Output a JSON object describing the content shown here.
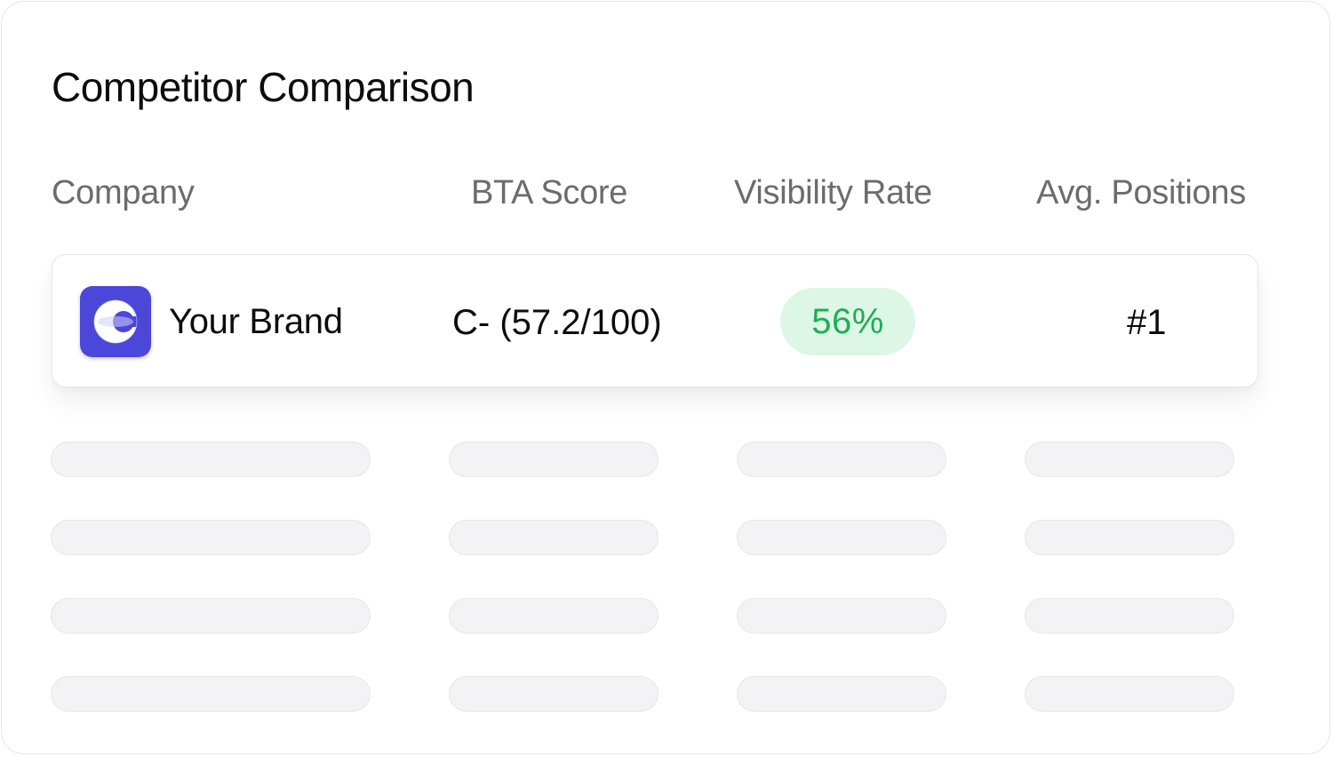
{
  "card": {
    "title": "Competitor Comparison"
  },
  "table": {
    "headers": {
      "company": "Company",
      "bta_score": "BTA Score",
      "visibility_rate": "Visibility Rate",
      "avg_positions": "Avg. Positions"
    },
    "highlight_row": {
      "company": "Your Brand",
      "logo_icon": "brand-c-logo-icon",
      "bta_score": "C- (57.2/100)",
      "visibility_rate": "56%",
      "avg_position": "#1"
    },
    "placeholder_rows": 4
  },
  "colors": {
    "logo_bg": "#4b47d8",
    "visibility_badge_bg": "#dcf7e6",
    "visibility_badge_text": "#1fae55",
    "skeleton": "#f3f3f5"
  }
}
